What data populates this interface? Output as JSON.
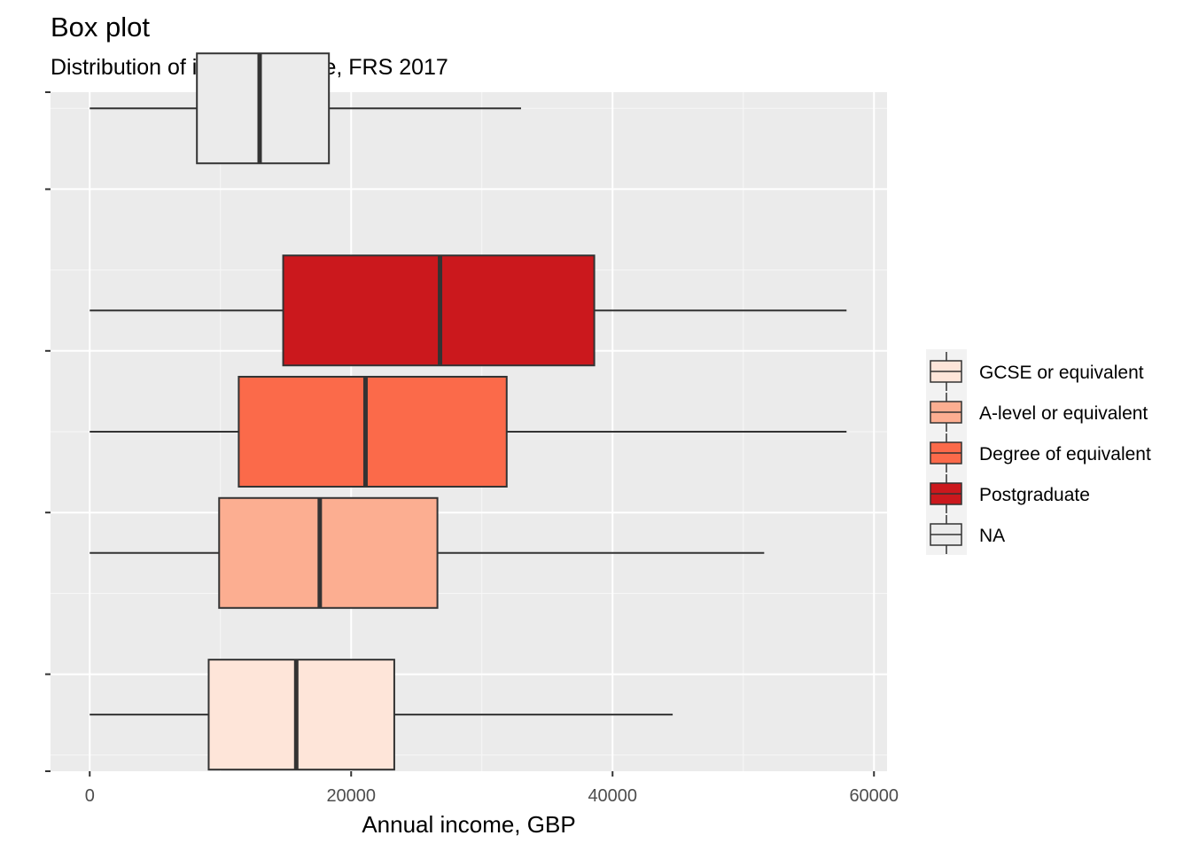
{
  "chart_data": {
    "type": "boxplot",
    "title": "Box plot",
    "subtitle": "Distribution of income by age, FRS 2017",
    "xlabel": "Annual income, GBP",
    "ylabel": "",
    "xlim": [
      -3000,
      61000
    ],
    "x_ticks": [
      0,
      20000,
      40000,
      60000
    ],
    "x_tick_labels": [
      "0",
      "20000",
      "40000",
      "60000"
    ],
    "y_categories_bottom_to_top": [
      "",
      "",
      "",
      ""
    ],
    "grid": true,
    "legend_position": "right",
    "legend": [
      {
        "label": "GCSE or equivalent",
        "color": "#FEE5D9"
      },
      {
        "label": "A-level or equivalent",
        "color": "#FCAE91"
      },
      {
        "label": "Degree of equivalent",
        "color": "#FB6A4A"
      },
      {
        "label": "Postgraduate",
        "color": "#CB181D"
      },
      {
        "label": "NA",
        "color": "#EBEBEB"
      }
    ],
    "boxes": [
      {
        "group": "GCSE or equivalent",
        "color": "#FEE5D9",
        "slot": 1,
        "offset": -0.25,
        "min": 0,
        "q1": 9100,
        "median": 15800,
        "q3": 23300,
        "max": 44600
      },
      {
        "group": "A-level or equivalent",
        "color": "#FCAE91",
        "slot": 2,
        "offset": -0.25,
        "min": 0,
        "q1": 9900,
        "median": 17600,
        "q3": 26600,
        "max": 51600
      },
      {
        "group": "Degree of equivalent",
        "color": "#FB6A4A",
        "slot": 2,
        "offset": 0.5,
        "min": 0,
        "q1": 11400,
        "median": 21100,
        "q3": 31900,
        "max": 57900
      },
      {
        "group": "Postgraduate",
        "color": "#CB181D",
        "slot": 3,
        "offset": 0.25,
        "min": 0,
        "q1": 14800,
        "median": 26800,
        "q3": 38600,
        "max": 57900
      },
      {
        "group": "NA",
        "color": "#EBEBEB",
        "slot": 4,
        "offset": 0.5,
        "min": 0,
        "q1": 8200,
        "median": 13000,
        "q3": 18300,
        "max": 33000
      }
    ]
  }
}
